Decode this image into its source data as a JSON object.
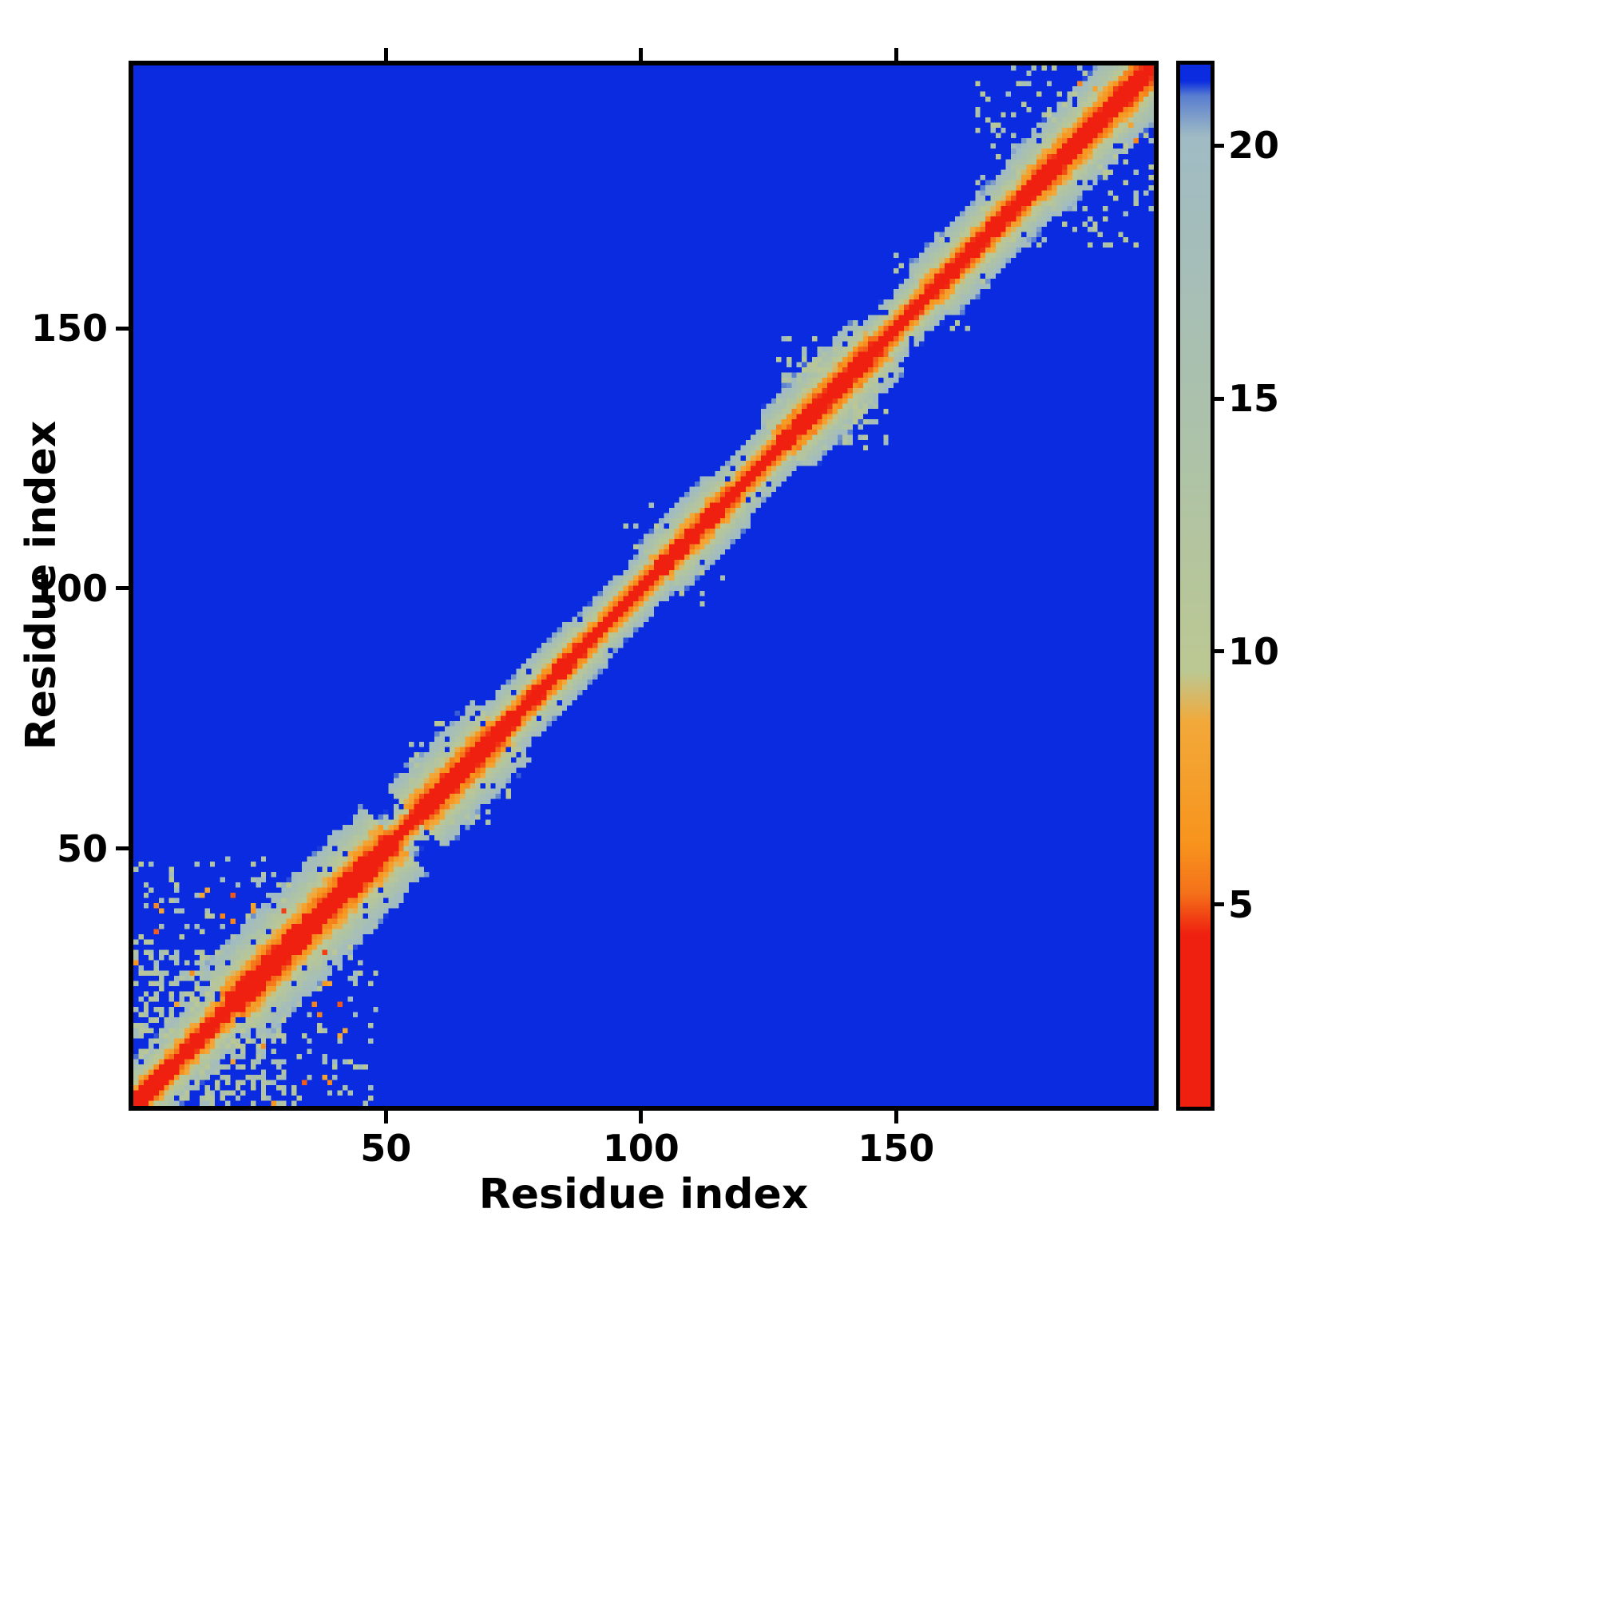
{
  "figure": {
    "xlabel": "Residue index",
    "ylabel": "Residue index",
    "x_ticks": [
      50,
      100,
      150
    ],
    "y_ticks": [
      50,
      100,
      150
    ],
    "colorbar_ticks": [
      5,
      10,
      15,
      20
    ]
  },
  "chart_data": {
    "type": "heatmap",
    "title": "",
    "xlabel": "Residue index",
    "ylabel": "Residue index",
    "x_range": [
      1,
      200
    ],
    "y_range": [
      1,
      200
    ],
    "n_residues": 200,
    "value_range": [
      1.0,
      21.6
    ],
    "background_value": 21.6,
    "colorbar_ticks": [
      5,
      10,
      15,
      20
    ],
    "legend_position": "right-colorbar",
    "grid": false,
    "description": "Symmetric residue-residue distance map: red main diagonal (shortest distances), orange near-diagonal band, pale sage mid-range halo of varying width, deep blue beyond ~21 cutoff; dense scattered contact clusters in the bottom-left (residues 1-48) block, a compact blob near residues 128-147, and scattered contacts near the top-right corner (residues 166-200).",
    "colors": {
      "background_blue": "#0a2be0",
      "diagonal_red": "#ef2010",
      "near_diagonal_orange": "#f7941d",
      "halo_pale": "#adc2a8"
    },
    "colormap_stops": [
      [
        1.0,
        "#ef2010"
      ],
      [
        4.4,
        "#ef2010"
      ],
      [
        5.2,
        "#f4711a"
      ],
      [
        6.2,
        "#f7941d"
      ],
      [
        8.6,
        "#f2a93a"
      ],
      [
        9.6,
        "#bcc893"
      ],
      [
        14.0,
        "#adc2a8"
      ],
      [
        20.2,
        "#a0bbc4"
      ],
      [
        21.0,
        "#5a7fd0"
      ],
      [
        21.3,
        "#0a2be0"
      ],
      [
        21.6,
        "#0a2be0"
      ]
    ],
    "diagonal_rise_segments": [
      [
        1,
        20,
        2.3
      ],
      [
        20,
        52,
        1.6
      ],
      [
        52,
        56,
        3.0
      ],
      [
        56,
        73,
        1.8
      ],
      [
        73,
        90,
        2.5
      ],
      [
        90,
        104,
        2.9
      ],
      [
        104,
        118,
        2.3
      ],
      [
        118,
        128,
        2.8
      ],
      [
        128,
        147,
        2.0
      ],
      [
        147,
        157,
        2.7
      ],
      [
        157,
        177,
        2.2
      ],
      [
        177,
        201,
        1.9
      ]
    ],
    "contact_clusters": [
      [
        1,
        30,
        1,
        30,
        0.4,
        9.5,
        19.0
      ],
      [
        1,
        48,
        1,
        48,
        0.13,
        9.5,
        20.0
      ],
      [
        1,
        42,
        1,
        42,
        0.02,
        4.5,
        8.5
      ],
      [
        55,
        74,
        55,
        74,
        0.1,
        9.5,
        19.0
      ],
      [
        76,
        92,
        76,
        92,
        0.05,
        10.0,
        19.0
      ],
      [
        96,
        120,
        96,
        120,
        0.06,
        10.0,
        19.0
      ],
      [
        127,
        148,
        127,
        148,
        0.3,
        10.0,
        19.0
      ],
      [
        131,
        144,
        131,
        144,
        0.55,
        10.0,
        17.0
      ],
      [
        130,
        143,
        130,
        143,
        0.015,
        5.0,
        8.5
      ],
      [
        150,
        168,
        150,
        168,
        0.06,
        10.0,
        19.0
      ],
      [
        166,
        200,
        166,
        200,
        0.12,
        9.5,
        20.0
      ],
      [
        180,
        200,
        172,
        200,
        0.1,
        9.5,
        20.0
      ],
      [
        182,
        200,
        182,
        200,
        0.02,
        5.0,
        8.5
      ]
    ],
    "hole_density": 0.06,
    "helix_stripe": {
      "offsets": [
        3,
        4
      ],
      "probability": 0.75,
      "value_min": 5.6,
      "value_max": 8.1
    }
  }
}
